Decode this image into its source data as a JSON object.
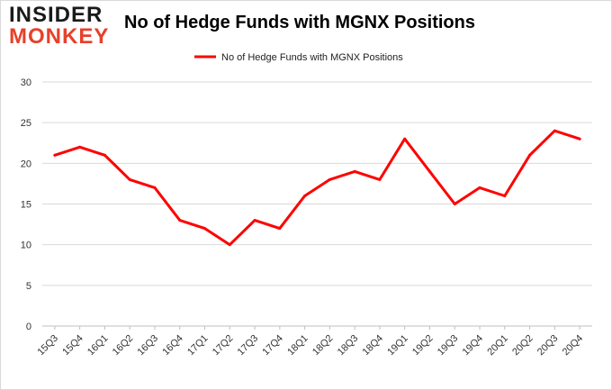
{
  "logo": {
    "line1": "INSIDER",
    "line2": "MONKEY"
  },
  "chart_data": {
    "type": "line",
    "title": "No of Hedge Funds with MGNX Positions",
    "categories": [
      "15Q3",
      "15Q4",
      "16Q1",
      "16Q2",
      "16Q3",
      "16Q4",
      "17Q1",
      "17Q2",
      "17Q3",
      "17Q4",
      "18Q1",
      "18Q2",
      "18Q3",
      "18Q4",
      "19Q1",
      "19Q2",
      "19Q3",
      "19Q4",
      "20Q1",
      "20Q2",
      "20Q3",
      "20Q4"
    ],
    "series": [
      {
        "name": "No of Hedge Funds with MGNX Positions",
        "values": [
          21,
          22,
          21,
          18,
          17,
          13,
          12,
          10,
          13,
          12,
          16,
          18,
          19,
          18,
          23,
          19,
          15,
          17,
          16,
          21,
          24,
          23
        ]
      }
    ],
    "ylim": [
      0,
      30
    ],
    "yticks": [
      0,
      5,
      10,
      15,
      20,
      25,
      30
    ],
    "grid": true,
    "legend": "top-center",
    "line_color": "#ff0000"
  }
}
